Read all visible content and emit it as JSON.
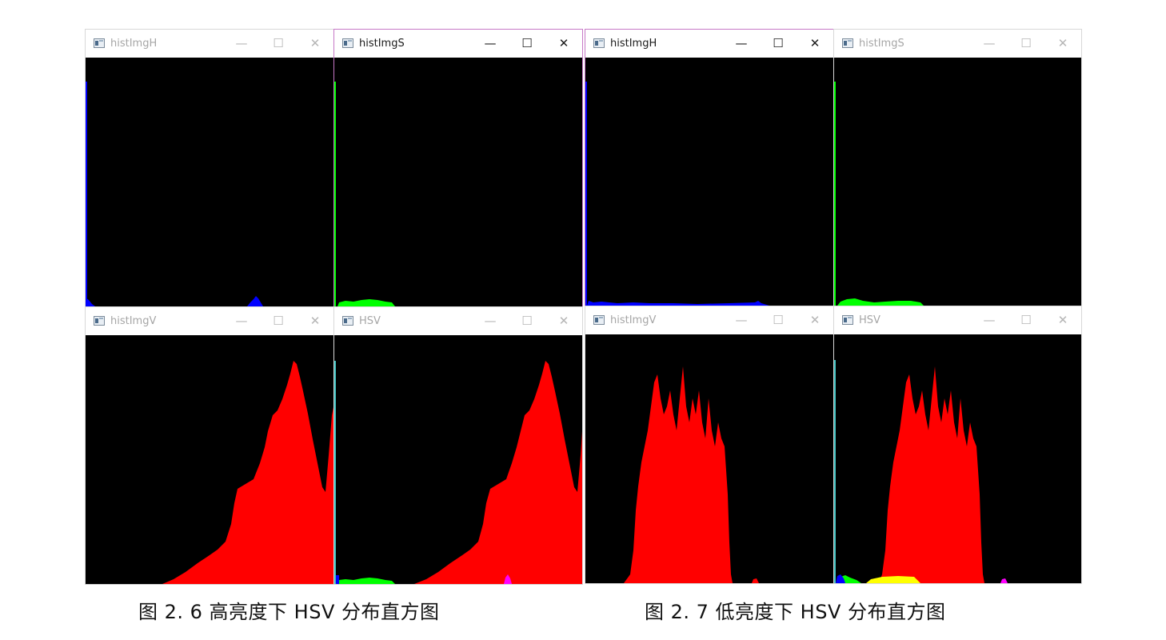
{
  "figure_a": {
    "caption": "图 2. 6 高亮度下 HSV 分布直方图",
    "windows": [
      {
        "id": "a-h",
        "title": "histImgH",
        "active": false
      },
      {
        "id": "a-s",
        "title": "histImgS",
        "active": true
      },
      {
        "id": "a-v",
        "title": "histImgV",
        "active": false
      },
      {
        "id": "a-hsv",
        "title": "HSV",
        "active": false
      }
    ]
  },
  "figure_b": {
    "caption": "图 2. 7 低亮度下 HSV 分布直方图",
    "windows": [
      {
        "id": "b-h",
        "title": "histImgH",
        "active": true
      },
      {
        "id": "b-s",
        "title": "histImgS",
        "active": false
      },
      {
        "id": "b-v",
        "title": "histImgV",
        "active": false
      },
      {
        "id": "b-hsv",
        "title": "HSV",
        "active": false
      }
    ]
  },
  "window_controls": {
    "minimize": "—",
    "maximize": "☐",
    "close": "✕"
  },
  "colors": {
    "hue_hist": "#0000ff",
    "sat_hist": "#00ff00",
    "val_hist": "#ff0000",
    "hsv_extra_magenta": "#ff00ff",
    "hsv_extra_yellow": "#ffff00",
    "hsv_extra_cyan": "#40c0c0",
    "active_border": "#c678c6"
  }
}
